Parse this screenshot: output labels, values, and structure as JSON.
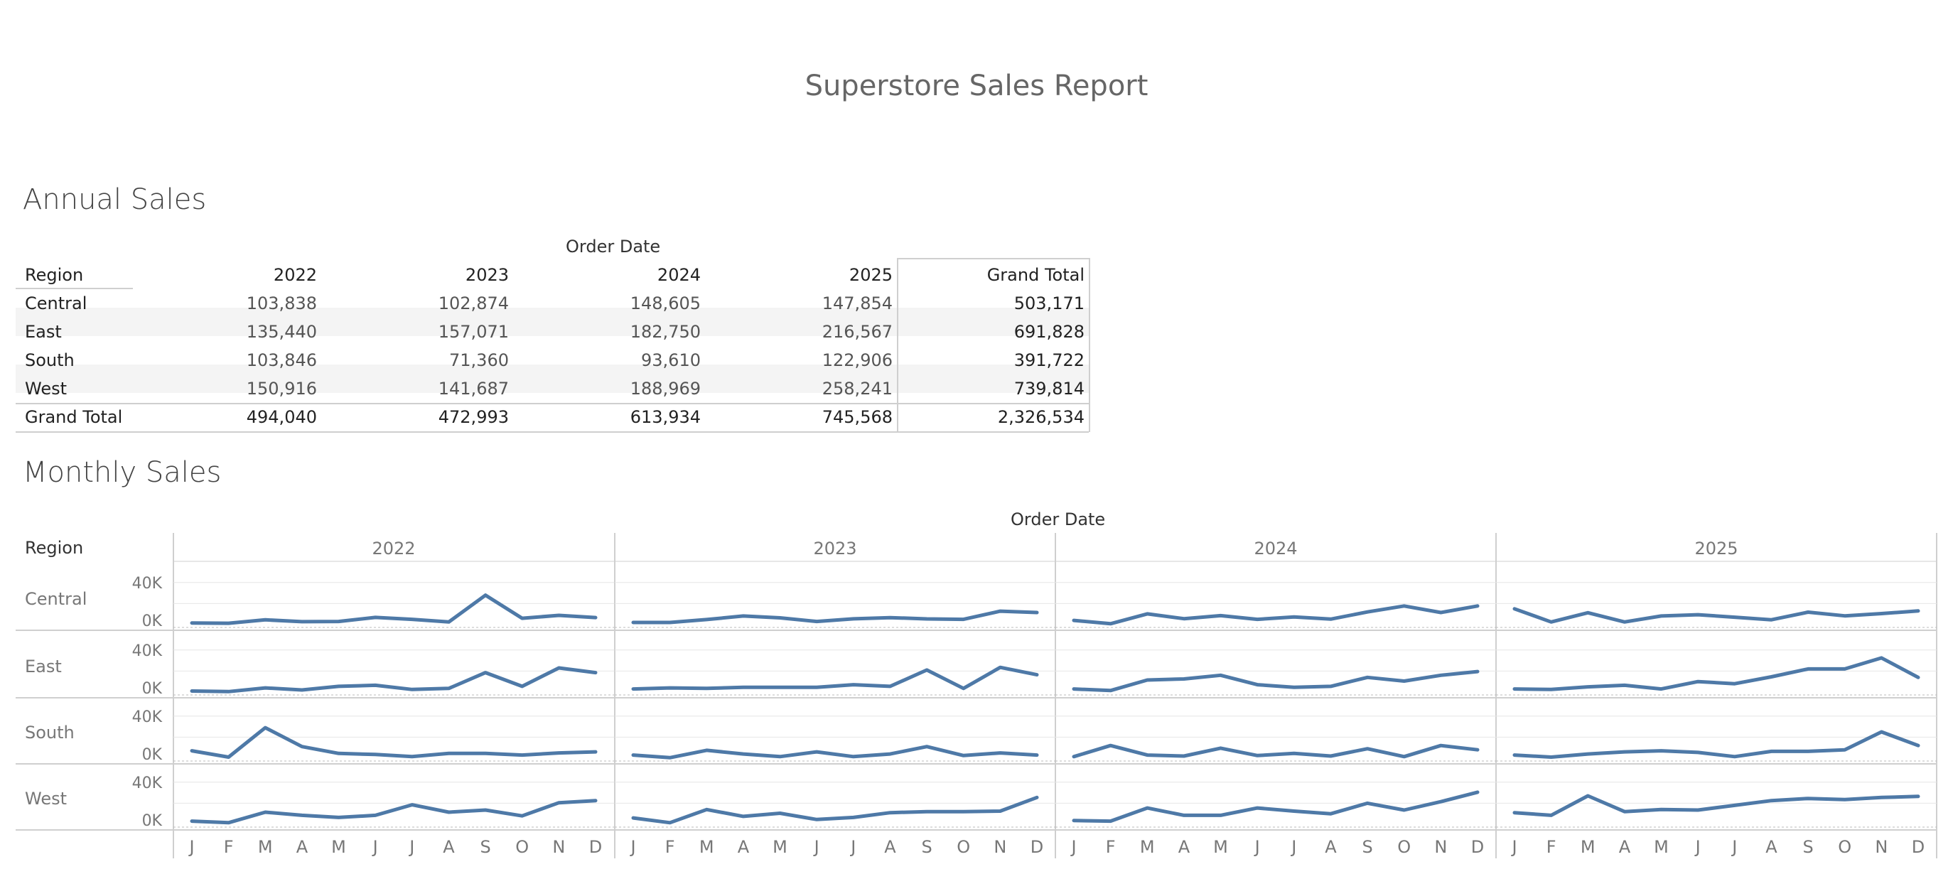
{
  "report_title": "Superstore Sales Report",
  "annual": {
    "section_title": "Annual Sales",
    "column_group_label": "Order Date",
    "row_header": "Region",
    "columns": [
      "2022",
      "2023",
      "2024",
      "2025",
      "Grand Total"
    ],
    "rows": [
      {
        "region": "Central",
        "values": [
          "103,838",
          "102,874",
          "148,605",
          "147,854",
          "503,171"
        ]
      },
      {
        "region": "East",
        "values": [
          "135,440",
          "157,071",
          "182,750",
          "216,567",
          "691,828"
        ]
      },
      {
        "region": "South",
        "values": [
          "103,846",
          "71,360",
          "93,610",
          "122,906",
          "391,722"
        ]
      },
      {
        "region": "West",
        "values": [
          "150,916",
          "141,687",
          "188,969",
          "258,241",
          "739,814"
        ]
      }
    ],
    "grand_total": {
      "label": "Grand Total",
      "values": [
        "494,040",
        "472,993",
        "613,934",
        "745,568",
        "2,326,534"
      ]
    }
  },
  "monthly": {
    "section_title": "Monthly Sales",
    "column_group_label": "Order Date",
    "row_header": "Region"
  },
  "colors": {
    "line": "#4e79a7",
    "grid": "#e6e6e6",
    "axis": "#cfcfcf"
  },
  "chart_data": {
    "type": "line",
    "title": "Monthly Sales",
    "years": [
      "2022",
      "2023",
      "2024",
      "2025"
    ],
    "month_labels": [
      "J",
      "F",
      "M",
      "A",
      "M",
      "J",
      "J",
      "A",
      "S",
      "O",
      "N",
      "D"
    ],
    "y_ticks": [
      "40K",
      "0K"
    ],
    "ylim": [
      0,
      50000
    ],
    "series": [
      {
        "name": "Central",
        "values": [
          [
            1500,
            1300,
            4500,
            2800,
            3000,
            6800,
            5000,
            2500,
            28000,
            6000,
            8800,
            6700
          ],
          [
            2000,
            2000,
            4800,
            8200,
            6400,
            3000,
            5500,
            6600,
            5400,
            5000,
            12800,
            11500
          ],
          [
            4000,
            800,
            10200,
            5600,
            8500,
            5000,
            7200,
            5200,
            12000,
            17700,
            11500,
            17700
          ],
          [
            15000,
            2500,
            11300,
            2500,
            8200,
            9400,
            7000,
            4600,
            11800,
            8300,
            10500,
            13000
          ]
        ]
      },
      {
        "name": "East",
        "values": [
          [
            1000,
            500,
            4000,
            2000,
            5500,
            6500,
            2500,
            3500,
            18500,
            5500,
            23000,
            18500
          ],
          [
            3000,
            4000,
            3500,
            4500,
            4500,
            4500,
            7000,
            5500,
            21000,
            3500,
            23500,
            16500
          ],
          [
            3000,
            1500,
            11500,
            12500,
            16000,
            7000,
            4500,
            5500,
            14000,
            10500,
            16000,
            19500
          ],
          [
            3000,
            2500,
            5000,
            6500,
            3000,
            10000,
            8000,
            14500,
            22000,
            22000,
            32500,
            14000
          ]
        ]
      },
      {
        "name": "South",
        "values": [
          [
            7000,
            1000,
            29000,
            11000,
            4500,
            3500,
            1500,
            4500,
            4500,
            3000,
            5000,
            6000
          ],
          [
            3000,
            500,
            7500,
            4000,
            1500,
            6000,
            1500,
            4000,
            11000,
            2500,
            5000,
            3000
          ],
          [
            1500,
            12000,
            3000,
            2000,
            9500,
            2500,
            4500,
            2000,
            9000,
            1500,
            12000,
            8000
          ],
          [
            3000,
            1000,
            4000,
            6000,
            7000,
            5500,
            1500,
            6500,
            6500,
            8000,
            25000,
            12000
          ]
        ]
      },
      {
        "name": "West",
        "values": [
          [
            3000,
            1500,
            11500,
            8500,
            6500,
            8500,
            18500,
            11500,
            13500,
            8000,
            20500,
            22500
          ],
          [
            6000,
            1500,
            14000,
            7500,
            10500,
            4500,
            6500,
            11000,
            12000,
            12000,
            12500,
            25500
          ],
          [
            3500,
            3000,
            15500,
            8500,
            8500,
            15500,
            12500,
            10000,
            20000,
            13500,
            21500,
            30500
          ],
          [
            11000,
            8500,
            27000,
            12000,
            14000,
            13500,
            18000,
            22500,
            24500,
            23500,
            25500,
            26500
          ]
        ]
      }
    ]
  }
}
